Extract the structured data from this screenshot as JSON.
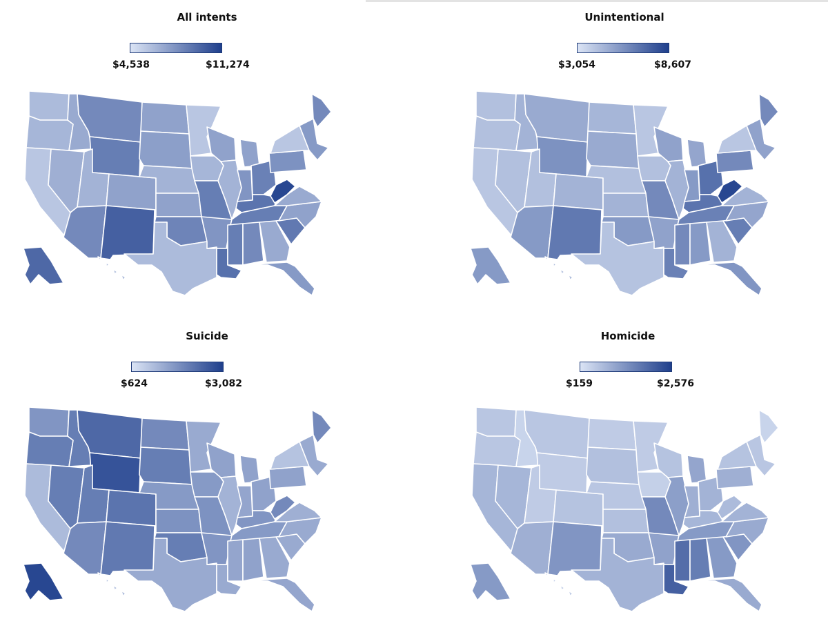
{
  "colors": {
    "low": "#dbe4f5",
    "high": "#1f3f8c",
    "border": "#ffffff"
  },
  "panels": [
    {
      "title": "All intents",
      "legend": {
        "min": "$4,538",
        "max": "$11,274"
      },
      "levels": {
        "WA": 0.25,
        "OR": 0.28,
        "CA": 0.18,
        "NV": 0.32,
        "ID": 0.35,
        "MT": 0.55,
        "WY": 0.62,
        "UT": 0.3,
        "AZ": 0.55,
        "CO": 0.4,
        "NM": 0.8,
        "ND": 0.4,
        "SD": 0.42,
        "NE": 0.3,
        "KS": 0.4,
        "OK": 0.58,
        "TX": 0.25,
        "MN": 0.18,
        "IA": 0.28,
        "MO": 0.62,
        "AR": 0.48,
        "LA": 0.7,
        "WI": 0.4,
        "IL": 0.3,
        "MI": 0.4,
        "IN": 0.48,
        "OH": 0.6,
        "KY": 0.68,
        "TN": 0.62,
        "MS": 0.62,
        "AL": 0.55,
        "GA": 0.35,
        "FL": 0.45,
        "SC": 0.65,
        "NC": 0.4,
        "VA": 0.35,
        "WV": 0.95,
        "PA": 0.5,
        "NY": 0.18,
        "NE_REG": 0.45,
        "ME": 0.55,
        "AK": 0.75,
        "HI": 0.25
      }
    },
    {
      "title": "Unintentional",
      "legend": {
        "min": "$3,054",
        "max": "$8,607"
      },
      "levels": {
        "WA": 0.22,
        "OR": 0.22,
        "CA": 0.18,
        "NV": 0.22,
        "ID": 0.3,
        "MT": 0.35,
        "WY": 0.5,
        "UT": 0.22,
        "AZ": 0.45,
        "CO": 0.3,
        "NM": 0.65,
        "ND": 0.28,
        "SD": 0.35,
        "NE": 0.22,
        "KS": 0.3,
        "OK": 0.45,
        "TX": 0.2,
        "MN": 0.18,
        "IA": 0.22,
        "MO": 0.55,
        "AR": 0.4,
        "LA": 0.6,
        "WI": 0.4,
        "IL": 0.3,
        "MI": 0.38,
        "IN": 0.45,
        "OH": 0.7,
        "KY": 0.68,
        "TN": 0.6,
        "MS": 0.55,
        "AL": 0.45,
        "GA": 0.3,
        "FL": 0.48,
        "SC": 0.62,
        "NC": 0.38,
        "VA": 0.3,
        "WV": 0.95,
        "PA": 0.55,
        "NY": 0.18,
        "NE_REG": 0.4,
        "ME": 0.55,
        "AK": 0.45,
        "HI": 0.25
      }
    },
    {
      "title": "Suicide",
      "legend": {
        "min": "$624",
        "max": "$3,082"
      },
      "levels": {
        "WA": 0.48,
        "OR": 0.62,
        "CA": 0.25,
        "NV": 0.62,
        "ID": 0.62,
        "MT": 0.75,
        "WY": 0.88,
        "UT": 0.62,
        "AZ": 0.55,
        "CO": 0.68,
        "NM": 0.65,
        "ND": 0.55,
        "SD": 0.62,
        "NE": 0.45,
        "KS": 0.5,
        "OK": 0.62,
        "TX": 0.35,
        "MN": 0.35,
        "IA": 0.45,
        "MO": 0.5,
        "AR": 0.48,
        "LA": 0.35,
        "WI": 0.4,
        "IL": 0.3,
        "MI": 0.4,
        "IN": 0.38,
        "OH": 0.4,
        "KY": 0.48,
        "TN": 0.45,
        "MS": 0.38,
        "AL": 0.4,
        "GA": 0.35,
        "FL": 0.38,
        "SC": 0.35,
        "NC": 0.35,
        "VA": 0.32,
        "WV": 0.55,
        "PA": 0.4,
        "NY": 0.2,
        "NE_REG": 0.35,
        "ME": 0.55,
        "AK": 0.95,
        "HI": 0.25
      }
    },
    {
      "title": "Homicide",
      "legend": {
        "min": "$159",
        "max": "$2,576"
      },
      "levels": {
        "WA": 0.18,
        "OR": 0.18,
        "CA": 0.28,
        "NV": 0.28,
        "ID": 0.1,
        "MT": 0.18,
        "WY": 0.15,
        "UT": 0.15,
        "AZ": 0.32,
        "CO": 0.2,
        "NM": 0.48,
        "ND": 0.15,
        "SD": 0.22,
        "NE": 0.18,
        "KS": 0.22,
        "OK": 0.35,
        "TX": 0.3,
        "MN": 0.15,
        "IA": 0.12,
        "MO": 0.55,
        "AR": 0.4,
        "LA": 0.8,
        "WI": 0.2,
        "IL": 0.42,
        "MI": 0.38,
        "IN": 0.32,
        "OH": 0.3,
        "KY": 0.28,
        "TN": 0.45,
        "MS": 0.72,
        "AL": 0.62,
        "GA": 0.45,
        "FL": 0.35,
        "SC": 0.48,
        "NC": 0.35,
        "VA": 0.3,
        "WV": 0.25,
        "PA": 0.32,
        "NY": 0.2,
        "NE_REG": 0.18,
        "ME": 0.1,
        "AK": 0.45,
        "HI": 0.15
      }
    }
  ]
}
